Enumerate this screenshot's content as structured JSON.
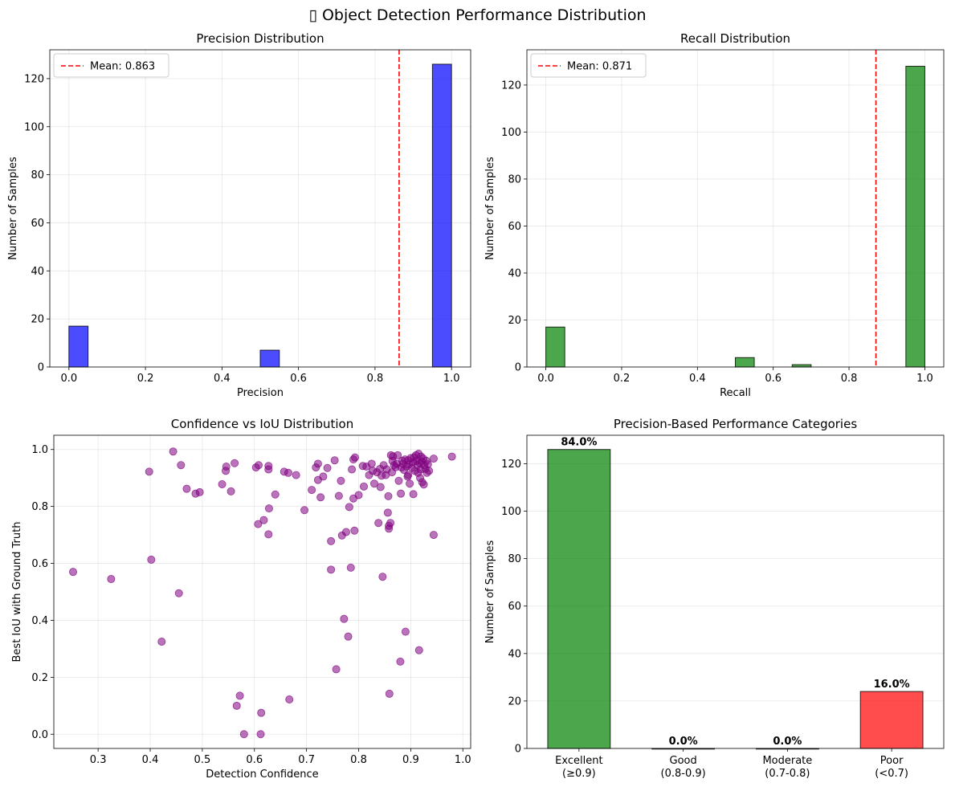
{
  "figure": {
    "title_icon": "▯",
    "title": "Object Detection Performance Distribution"
  },
  "colors": {
    "precision_bar": "#0000FF",
    "recall_bar": "#008000",
    "mean_line": "#FF0000",
    "scatter": "#800080",
    "cat_excellent": "#008000",
    "cat_poor": "#FF0000"
  },
  "chart_data": [
    {
      "type": "bar",
      "subtype": "histogram",
      "title": "Precision Distribution",
      "xlabel": "Precision",
      "ylabel": "Number of Samples",
      "xlim": [
        -0.05,
        1.05
      ],
      "ylim": [
        0,
        132
      ],
      "xticks": [
        0.0,
        0.2,
        0.4,
        0.6,
        0.8,
        1.0
      ],
      "xtick_labels": [
        "0.0",
        "0.2",
        "0.4",
        "0.6",
        "0.8",
        "1.0"
      ],
      "yticks": [
        0,
        20,
        40,
        60,
        80,
        100,
        120
      ],
      "ytick_labels": [
        "0",
        "20",
        "40",
        "60",
        "80",
        "100",
        "120"
      ],
      "bins": [
        [
          0.0,
          0.05,
          17
        ],
        [
          0.5,
          0.55,
          7
        ],
        [
          0.95,
          1.0,
          126
        ]
      ],
      "mean_line": {
        "x": 0.863,
        "label": "Mean: 0.863"
      },
      "legend": "upper-left",
      "grid": true
    },
    {
      "type": "bar",
      "subtype": "histogram",
      "title": "Recall Distribution",
      "xlabel": "Recall",
      "ylabel": "Number of Samples",
      "xlim": [
        -0.05,
        1.05
      ],
      "ylim": [
        0,
        135
      ],
      "xticks": [
        0.0,
        0.2,
        0.4,
        0.6,
        0.8,
        1.0
      ],
      "xtick_labels": [
        "0.0",
        "0.2",
        "0.4",
        "0.6",
        "0.8",
        "1.0"
      ],
      "yticks": [
        0,
        20,
        40,
        60,
        80,
        100,
        120
      ],
      "ytick_labels": [
        "0",
        "20",
        "40",
        "60",
        "80",
        "100",
        "120"
      ],
      "bins": [
        [
          0.0,
          0.05,
          17
        ],
        [
          0.5,
          0.55,
          4
        ],
        [
          0.65,
          0.7,
          1
        ],
        [
          0.95,
          1.0,
          128
        ]
      ],
      "mean_line": {
        "x": 0.871,
        "label": "Mean: 0.871"
      },
      "legend": "upper-left",
      "grid": true
    },
    {
      "type": "scatter",
      "title": "Confidence vs IoU Distribution",
      "xlabel": "Detection Confidence",
      "ylabel": "Best IoU with Ground Truth",
      "xlim": [
        0.215,
        1.015
      ],
      "ylim": [
        -0.05,
        1.05
      ],
      "xticks": [
        0.3,
        0.4,
        0.5,
        0.6,
        0.7,
        0.8,
        0.9,
        1.0
      ],
      "xtick_labels": [
        "0.3",
        "0.4",
        "0.5",
        "0.6",
        "0.7",
        "0.8",
        "0.9",
        "1.0"
      ],
      "yticks": [
        0.0,
        0.2,
        0.4,
        0.6,
        0.8,
        1.0
      ],
      "ytick_labels": [
        "0.0",
        "0.2",
        "0.4",
        "0.6",
        "0.8",
        "1.0"
      ],
      "grid": true,
      "points": [
        [
          0.252,
          0.57
        ],
        [
          0.325,
          0.545
        ],
        [
          0.398,
          0.922
        ],
        [
          0.402,
          0.613
        ],
        [
          0.422,
          0.325
        ],
        [
          0.444,
          0.993
        ],
        [
          0.455,
          0.495
        ],
        [
          0.459,
          0.945
        ],
        [
          0.47,
          0.862
        ],
        [
          0.487,
          0.845
        ],
        [
          0.495,
          0.85
        ],
        [
          0.538,
          0.878
        ],
        [
          0.545,
          0.925
        ],
        [
          0.546,
          0.94
        ],
        [
          0.555,
          0.853
        ],
        [
          0.562,
          0.952
        ],
        [
          0.566,
          0.1
        ],
        [
          0.572,
          0.135
        ],
        [
          0.58,
          0.0
        ],
        [
          0.603,
          0.937
        ],
        [
          0.607,
          0.738
        ],
        [
          0.608,
          0.945
        ],
        [
          0.612,
          0.0
        ],
        [
          0.613,
          0.075
        ],
        [
          0.618,
          0.752
        ],
        [
          0.627,
          0.942
        ],
        [
          0.627,
          0.93
        ],
        [
          0.627,
          0.702
        ],
        [
          0.628,
          0.793
        ],
        [
          0.64,
          0.842
        ],
        [
          0.657,
          0.922
        ],
        [
          0.665,
          0.918
        ],
        [
          0.667,
          0.122
        ],
        [
          0.68,
          0.91
        ],
        [
          0.696,
          0.787
        ],
        [
          0.71,
          0.858
        ],
        [
          0.718,
          0.937
        ],
        [
          0.722,
          0.95
        ],
        [
          0.722,
          0.893
        ],
        [
          0.727,
          0.832
        ],
        [
          0.732,
          0.905
        ],
        [
          0.74,
          0.935
        ],
        [
          0.747,
          0.678
        ],
        [
          0.747,
          0.578
        ],
        [
          0.754,
          0.962
        ],
        [
          0.757,
          0.228
        ],
        [
          0.762,
          0.837
        ],
        [
          0.766,
          0.89
        ],
        [
          0.768,
          0.698
        ],
        [
          0.772,
          0.405
        ],
        [
          0.776,
          0.71
        ],
        [
          0.78,
          0.343
        ],
        [
          0.782,
          0.798
        ],
        [
          0.785,
          0.585
        ],
        [
          0.787,
          0.93
        ],
        [
          0.79,
          0.828
        ],
        [
          0.79,
          0.965
        ],
        [
          0.792,
          0.715
        ],
        [
          0.793,
          0.972
        ],
        [
          0.8,
          0.84
        ],
        [
          0.808,
          0.942
        ],
        [
          0.81,
          0.87
        ],
        [
          0.815,
          0.94
        ],
        [
          0.82,
          0.91
        ],
        [
          0.825,
          0.95
        ],
        [
          0.827,
          0.925
        ],
        [
          0.83,
          0.88
        ],
        [
          0.835,
          0.92
        ],
        [
          0.838,
          0.742
        ],
        [
          0.841,
          0.932
        ],
        [
          0.842,
          0.868
        ],
        [
          0.844,
          0.908
        ],
        [
          0.846,
          0.553
        ],
        [
          0.848,
          0.945
        ],
        [
          0.852,
          0.91
        ],
        [
          0.854,
          0.93
        ],
        [
          0.856,
          0.778
        ],
        [
          0.857,
          0.836
        ],
        [
          0.858,
          0.722
        ],
        [
          0.858,
          0.732
        ],
        [
          0.859,
          0.142
        ],
        [
          0.861,
          0.742
        ],
        [
          0.862,
          0.98
        ],
        [
          0.864,
          0.92
        ],
        [
          0.866,
          0.976
        ],
        [
          0.868,
          0.945
        ],
        [
          0.871,
          0.938
        ],
        [
          0.873,
          0.95
        ],
        [
          0.875,
          0.98
        ],
        [
          0.877,
          0.89
        ],
        [
          0.88,
          0.255
        ],
        [
          0.881,
          0.845
        ],
        [
          0.882,
          0.937
        ],
        [
          0.884,
          0.96
        ],
        [
          0.885,
          0.95
        ],
        [
          0.887,
          0.928
        ],
        [
          0.889,
          0.965
        ],
        [
          0.89,
          0.36
        ],
        [
          0.892,
          0.94
        ],
        [
          0.894,
          0.905
        ],
        [
          0.895,
          0.962
        ],
        [
          0.897,
          0.948
        ],
        [
          0.898,
          0.88
        ],
        [
          0.9,
          0.97
        ],
        [
          0.902,
          0.935
        ],
        [
          0.904,
          0.955
        ],
        [
          0.905,
          0.843
        ],
        [
          0.906,
          0.972
        ],
        [
          0.908,
          0.925
        ],
        [
          0.91,
          0.98
        ],
        [
          0.911,
          0.96
        ],
        [
          0.913,
          0.945
        ],
        [
          0.914,
          0.918
        ],
        [
          0.915,
          0.985
        ],
        [
          0.916,
          0.295
        ],
        [
          0.917,
          0.952
        ],
        [
          0.919,
          0.93
        ],
        [
          0.92,
          0.975
        ],
        [
          0.921,
          0.958
        ],
        [
          0.922,
          0.885
        ],
        [
          0.924,
          0.968
        ],
        [
          0.925,
          0.877
        ],
        [
          0.926,
          0.945
        ],
        [
          0.928,
          0.932
        ],
        [
          0.93,
          0.96
        ],
        [
          0.931,
          0.918
        ],
        [
          0.933,
          0.948
        ],
        [
          0.935,
          0.925
        ],
        [
          0.944,
          0.968
        ],
        [
          0.944,
          0.7
        ],
        [
          0.979,
          0.975
        ],
        [
          0.918,
          0.9
        ],
        [
          0.895,
          0.91
        ],
        [
          0.865,
          0.96
        ]
      ]
    },
    {
      "type": "bar",
      "title": "Precision-Based Performance Categories",
      "xlabel": "",
      "ylabel": "Number of Samples",
      "ylim": [
        0,
        132
      ],
      "yticks": [
        0,
        20,
        40,
        60,
        80,
        100,
        120
      ],
      "ytick_labels": [
        "0",
        "20",
        "40",
        "60",
        "80",
        "100",
        "120"
      ],
      "categories": [
        "Excellent\n(≥0.9)",
        "Good\n(0.8-0.9)",
        "Moderate\n(0.7-0.8)",
        "Poor\n(<0.7)"
      ],
      "values": [
        126,
        0,
        0,
        24
      ],
      "data_labels": [
        "84.0%",
        "0.0%",
        "0.0%",
        "16.0%"
      ],
      "bar_colors": [
        "#008000",
        "#008000",
        "#008000",
        "#FF0000"
      ],
      "grid": "y"
    }
  ]
}
